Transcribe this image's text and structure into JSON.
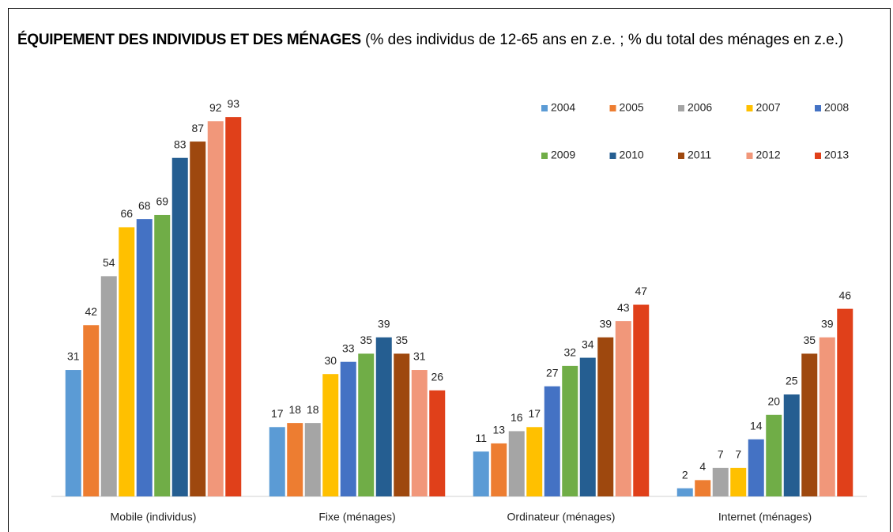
{
  "chart_data": {
    "type": "bar",
    "title": "ÉQUIPEMENT DES INDIVIDUS ET DES MÉNAGES",
    "subtitle": "(% des individus de 12-65 ans en z.e. ; % du total des ménages en z.e.)",
    "categories": [
      "Mobile (individus)",
      "Fixe (ménages)",
      "Ordinateur (ménages)",
      "Internet (ménages)"
    ],
    "legend": "top-right",
    "series": [
      {
        "name": "2004",
        "color": "#5b9bd5",
        "values": [
          31,
          17,
          11,
          2
        ]
      },
      {
        "name": "2005",
        "color": "#ed7d31",
        "values": [
          42,
          18,
          13,
          4
        ]
      },
      {
        "name": "2006",
        "color": "#a5a5a5",
        "values": [
          54,
          18,
          16,
          7
        ]
      },
      {
        "name": "2007",
        "color": "#ffc000",
        "values": [
          66,
          30,
          17,
          7
        ]
      },
      {
        "name": "2008",
        "color": "#4472c4",
        "values": [
          68,
          33,
          27,
          14
        ]
      },
      {
        "name": "2009",
        "color": "#70ad47",
        "values": [
          69,
          35,
          32,
          20
        ]
      },
      {
        "name": "2010",
        "color": "#255e91",
        "values": [
          83,
          39,
          34,
          25
        ]
      },
      {
        "name": "2011",
        "color": "#9e480e",
        "values": [
          87,
          35,
          39,
          35
        ]
      },
      {
        "name": "2012",
        "color": "#f1977a",
        "values": [
          92,
          31,
          43,
          39
        ]
      },
      {
        "name": "2013",
        "color": "#e0401a",
        "values": [
          93,
          26,
          47,
          46
        ]
      }
    ]
  }
}
